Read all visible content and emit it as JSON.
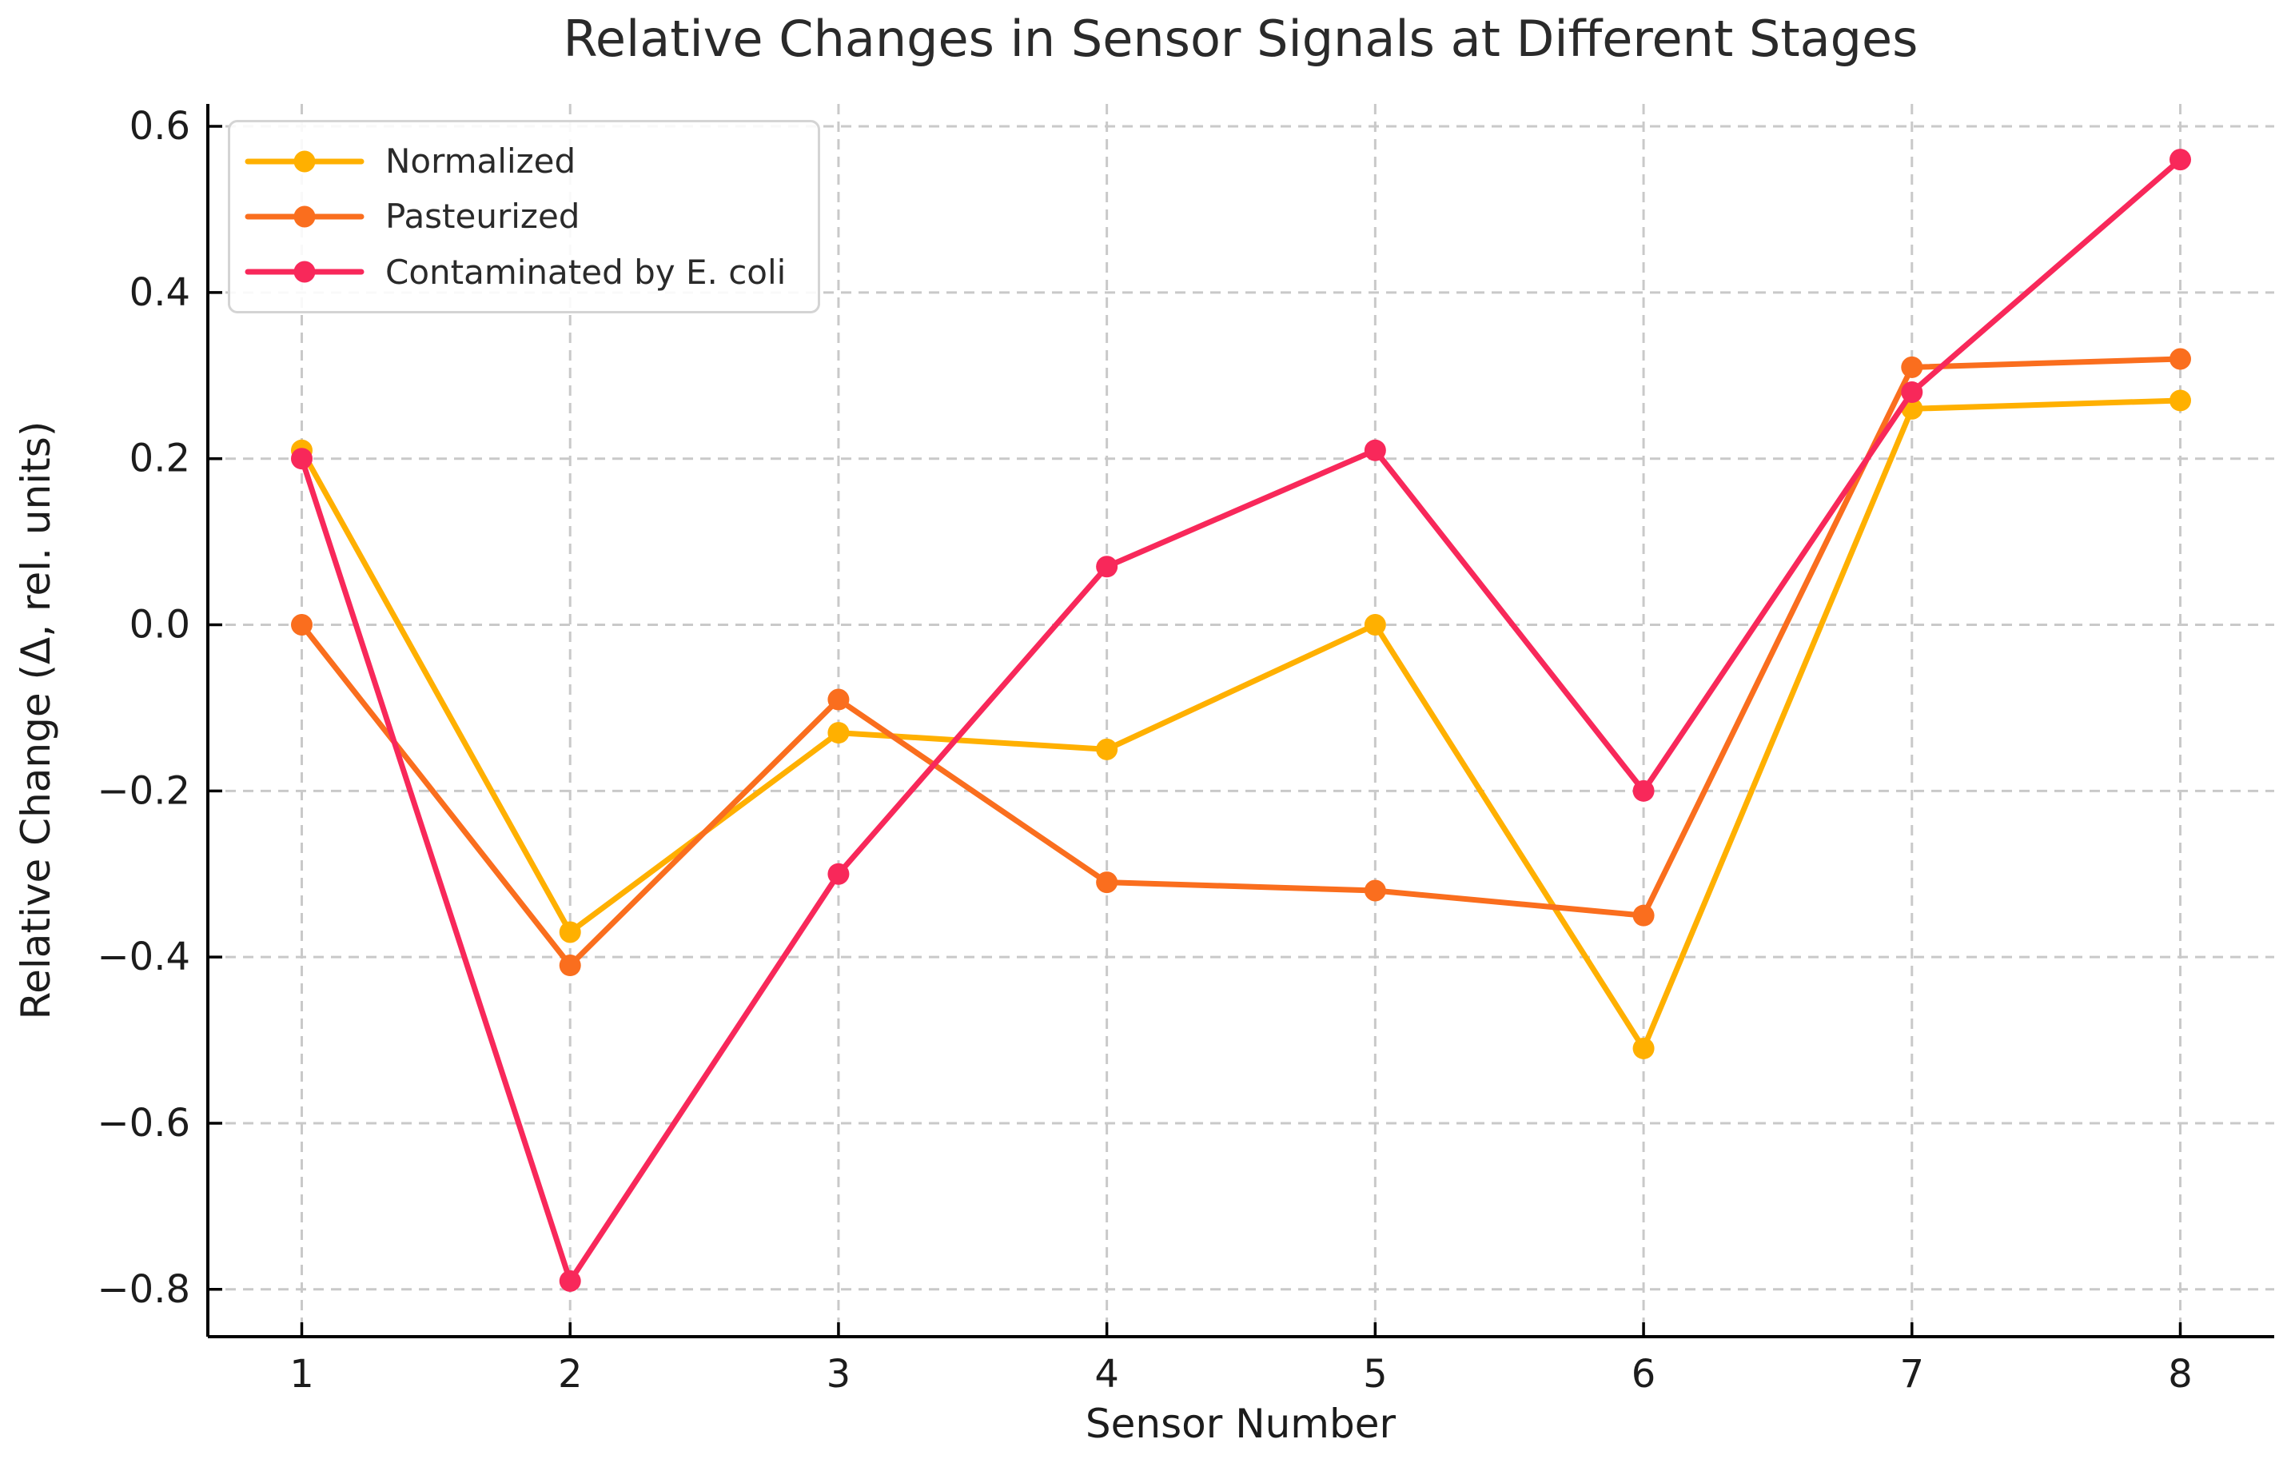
{
  "figure": {
    "background": "#ffffff",
    "plot_background": "#ffffff"
  },
  "chart_data": {
    "type": "line",
    "title": "Relative Changes in Sensor Signals at Different Stages",
    "xlabel": "Sensor Number",
    "ylabel": "Relative Change (Δ, rel. units)",
    "x": [
      1,
      2,
      3,
      4,
      5,
      6,
      7,
      8
    ],
    "series": [
      {
        "name": "Normalized",
        "color": "#FFB000",
        "values": [
          0.21,
          -0.37,
          -0.13,
          -0.15,
          0.0,
          -0.51,
          0.26,
          0.27
        ]
      },
      {
        "name": "Pasteurized",
        "color": "#FA6E1E",
        "values": [
          0.0,
          -0.41,
          -0.09,
          -0.31,
          -0.32,
          -0.35,
          0.31,
          0.32
        ]
      },
      {
        "name": "Contaminated by E. coli",
        "color": "#F8285A",
        "values": [
          0.2,
          -0.79,
          -0.3,
          0.07,
          0.21,
          -0.2,
          0.28,
          0.56
        ]
      }
    ],
    "x_ticks": [
      {
        "v": 1,
        "label": "1"
      },
      {
        "v": 2,
        "label": "2"
      },
      {
        "v": 3,
        "label": "3"
      },
      {
        "v": 4,
        "label": "4"
      },
      {
        "v": 5,
        "label": "5"
      },
      {
        "v": 6,
        "label": "6"
      },
      {
        "v": 7,
        "label": "7"
      },
      {
        "v": 8,
        "label": "8"
      }
    ],
    "y_ticks": [
      {
        "v": 0.6,
        "label": "0.6"
      },
      {
        "v": 0.4,
        "label": "0.4"
      },
      {
        "v": 0.2,
        "label": "0.2"
      },
      {
        "v": 0.0,
        "label": "0.0"
      },
      {
        "v": -0.2,
        "label": "−0.2"
      },
      {
        "v": -0.4,
        "label": "−0.4"
      },
      {
        "v": -0.6,
        "label": "−0.6"
      },
      {
        "v": -0.8,
        "label": "−0.8"
      }
    ],
    "xlim": [
      0.65,
      8.35
    ],
    "ylim": [
      -0.857,
      0.627
    ],
    "grid": {
      "on": true,
      "style": "dashed",
      "color": "#c9c9c9"
    },
    "legend": {
      "position": "upper left",
      "entries": [
        "Normalized",
        "Pasteurized",
        "Contaminated by E. coli"
      ]
    },
    "axis_color": "#000000",
    "text_color": "#1c1c1c"
  }
}
